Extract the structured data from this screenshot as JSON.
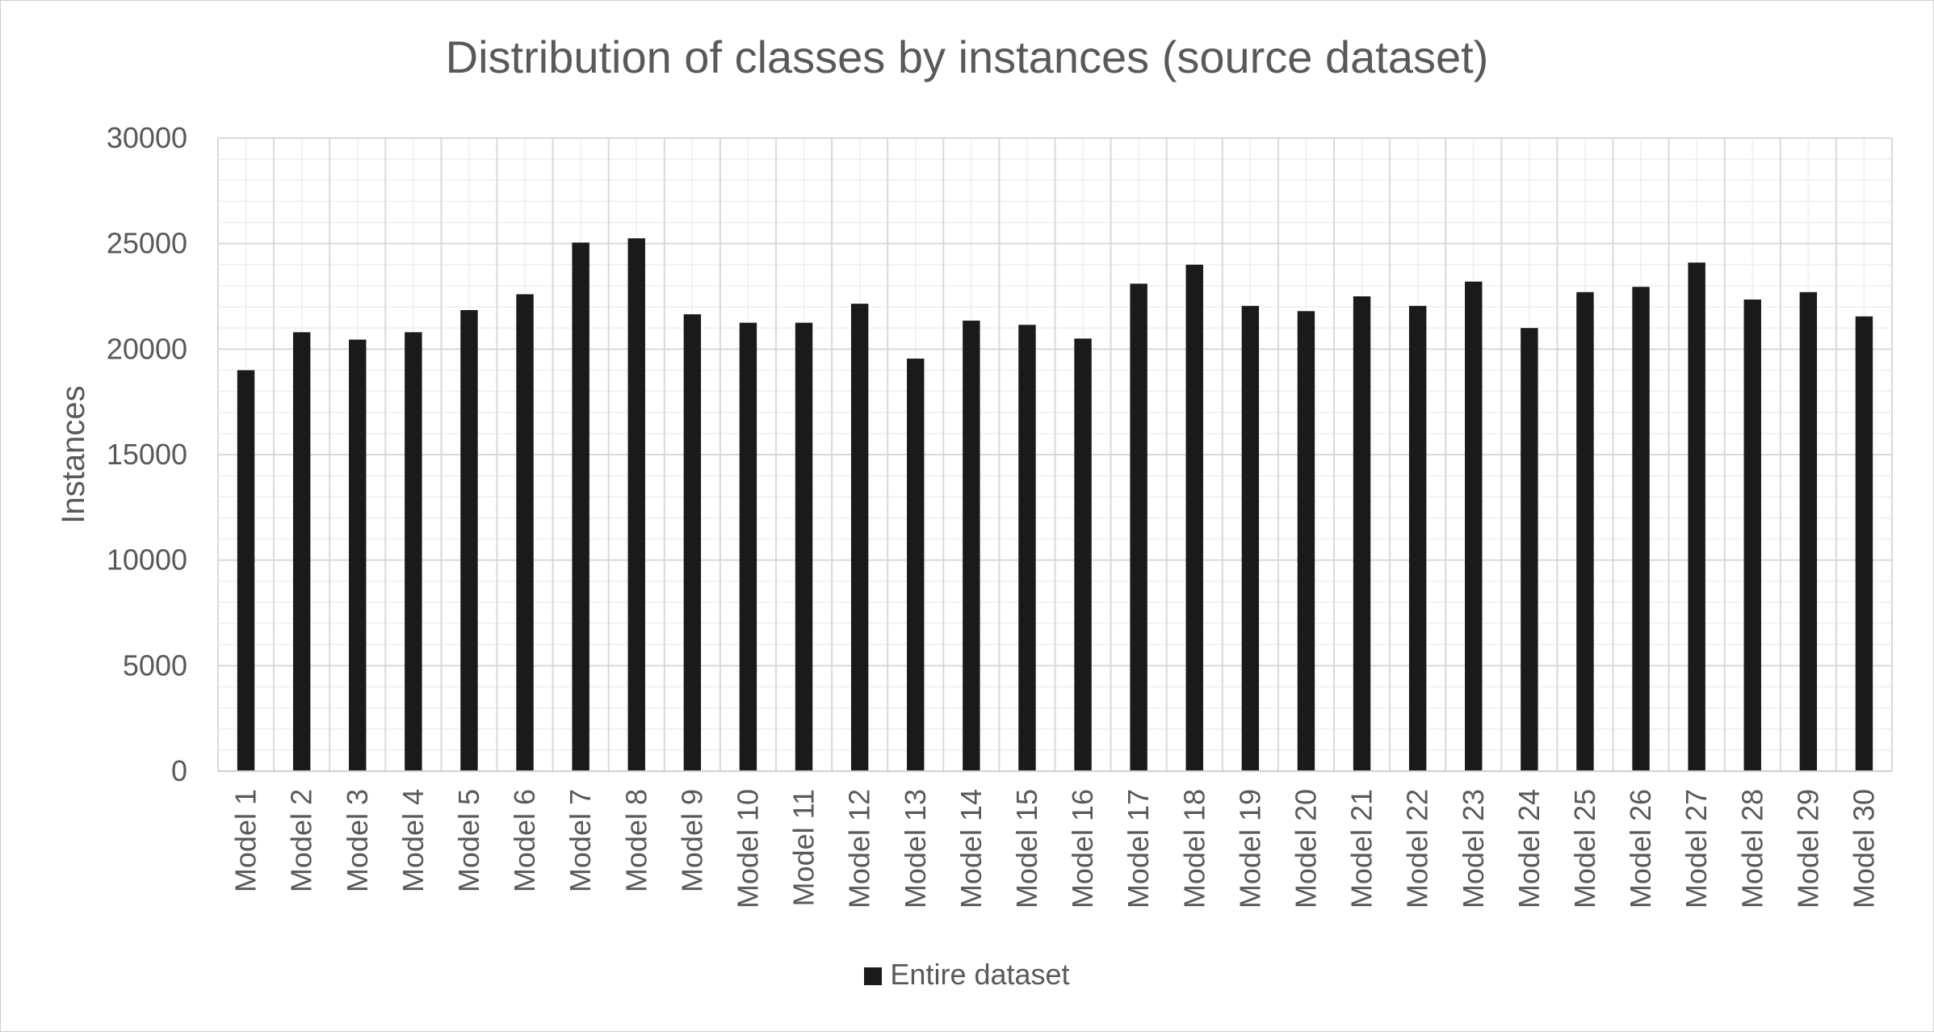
{
  "chart_data": {
    "type": "bar",
    "title": "Distribution of classes by instances (source dataset)",
    "ylabel": "Instances",
    "xlabel": "",
    "ylim": [
      0,
      30000
    ],
    "yticks": [
      0,
      5000,
      10000,
      15000,
      20000,
      25000,
      30000
    ],
    "grid": true,
    "legend_position": "bottom",
    "categories": [
      "Model 1",
      "Model 2",
      "Model 3",
      "Model 4",
      "Model 5",
      "Model 6",
      "Model 7",
      "Model 8",
      "Model 9",
      "Model 10",
      "Model 11",
      "Model 12",
      "Model 13",
      "Model 14",
      "Model 15",
      "Model 16",
      "Model 17",
      "Model 18",
      "Model 19",
      "Model 20",
      "Model 21",
      "Model 22",
      "Model 23",
      "Model 24",
      "Model 25",
      "Model 26",
      "Model 27",
      "Model 28",
      "Model 29",
      "Model 30"
    ],
    "series": [
      {
        "name": "Entire dataset",
        "color": "#1a1a1a",
        "values": [
          19000,
          20800,
          20450,
          20800,
          21850,
          22600,
          25050,
          25250,
          21650,
          21250,
          21250,
          22150,
          19550,
          21350,
          21150,
          20500,
          23100,
          24000,
          22050,
          21800,
          22500,
          22050,
          23200,
          21000,
          22700,
          22950,
          24100,
          22350,
          22700,
          21550
        ]
      }
    ]
  }
}
